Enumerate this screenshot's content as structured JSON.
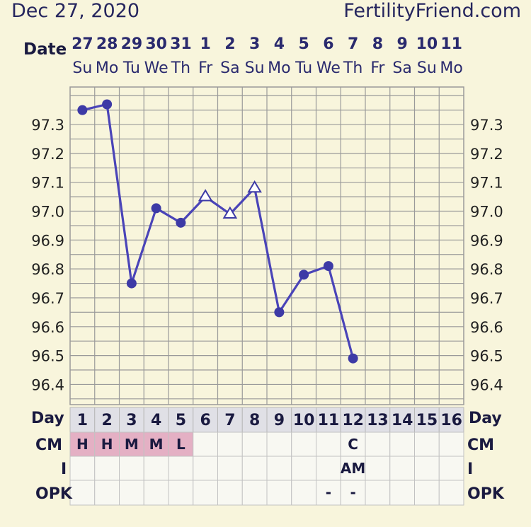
{
  "header": {
    "date": "Dec 27, 2020",
    "site": "FertilityFriend.com"
  },
  "labels": {
    "date": "Date",
    "day": "Day",
    "cm": "CM",
    "i": "I",
    "opk": "OPK"
  },
  "columns": [
    {
      "date": "27",
      "weekday": "Su",
      "day": "1"
    },
    {
      "date": "28",
      "weekday": "Mo",
      "day": "2"
    },
    {
      "date": "29",
      "weekday": "Tu",
      "day": "3"
    },
    {
      "date": "30",
      "weekday": "We",
      "day": "4"
    },
    {
      "date": "31",
      "weekday": "Th",
      "day": "5"
    },
    {
      "date": "1",
      "weekday": "Fr",
      "day": "6"
    },
    {
      "date": "2",
      "weekday": "Sa",
      "day": "7"
    },
    {
      "date": "3",
      "weekday": "Su",
      "day": "8"
    },
    {
      "date": "4",
      "weekday": "Mo",
      "day": "9"
    },
    {
      "date": "5",
      "weekday": "Tu",
      "day": "10"
    },
    {
      "date": "6",
      "weekday": "We",
      "day": "11"
    },
    {
      "date": "7",
      "weekday": "Th",
      "day": "12"
    },
    {
      "date": "8",
      "weekday": "Fr",
      "day": "13"
    },
    {
      "date": "9",
      "weekday": "Sa",
      "day": "14"
    },
    {
      "date": "10",
      "weekday": "Su",
      "day": "15"
    },
    {
      "date": "11",
      "weekday": "Mo",
      "day": "16"
    }
  ],
  "chart_data": {
    "type": "line",
    "title": "",
    "xlabel": "Day",
    "ylabel": "",
    "x": [
      1,
      2,
      3,
      4,
      5,
      6,
      7,
      8,
      9,
      10,
      11,
      12
    ],
    "series": [
      {
        "values": [
          97.35,
          97.37,
          96.75,
          97.01,
          96.96,
          97.05,
          96.99,
          97.08,
          96.65,
          96.78,
          96.81,
          96.49
        ],
        "markers": [
          "circle",
          "circle",
          "circle",
          "circle",
          "circle",
          "triangle-open",
          "triangle-open",
          "triangle-open",
          "circle",
          "circle",
          "circle",
          "circle"
        ]
      }
    ],
    "yticks": [
      "97.3",
      "97.2",
      "97.1",
      "97.0",
      "96.9",
      "96.8",
      "96.7",
      "96.6",
      "96.5",
      "96.4"
    ],
    "ylim": [
      96.33,
      97.43
    ],
    "grid": true,
    "colors": {
      "line": "#4a44b8",
      "marker": "#3d3aa6",
      "grid": "#9a9a9a",
      "plot_bg": "#f8f5dc",
      "header_cell": "#e0e0e6",
      "cm_highlight": "#e4b0c4",
      "empty_cell": "#f8f8f2"
    }
  },
  "rows": {
    "cm": [
      "H",
      "H",
      "M",
      "M",
      "L",
      "",
      "",
      "",
      "",
      "",
      "",
      "C",
      "",
      "",
      "",
      ""
    ],
    "i": [
      "",
      "",
      "",
      "",
      "",
      "",
      "",
      "",
      "",
      "",
      "",
      "AM",
      "",
      "",
      "",
      ""
    ],
    "opk": [
      "",
      "",
      "",
      "",
      "",
      "",
      "",
      "",
      "",
      "",
      "-",
      "-",
      "",
      "",
      "",
      ""
    ]
  }
}
